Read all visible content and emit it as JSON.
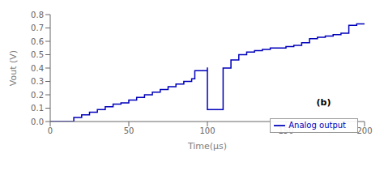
{
  "chart_data": {
    "type": "line",
    "xlabel": "Time(μs)",
    "ylabel": "Vout (V)",
    "annotations": [
      "(b)"
    ],
    "x": [
      0,
      10,
      15,
      20,
      25,
      30,
      35,
      40,
      45,
      50,
      55,
      60,
      65,
      70,
      75,
      80,
      85,
      90,
      92,
      100,
      100.01,
      105,
      110,
      115,
      120,
      125,
      130,
      135,
      140,
      145,
      150,
      155,
      160,
      165,
      170,
      175,
      180,
      185,
      190,
      195,
      200
    ],
    "series": [
      {
        "name": "Analog output",
        "color": "#0000BB",
        "line_style": "step",
        "values": [
          0.0,
          0.0,
          0.03,
          0.05,
          0.07,
          0.09,
          0.11,
          0.13,
          0.14,
          0.16,
          0.18,
          0.2,
          0.22,
          0.24,
          0.26,
          0.28,
          0.3,
          0.32,
          0.38,
          0.4,
          0.09,
          0.09,
          0.4,
          0.46,
          0.5,
          0.52,
          0.53,
          0.54,
          0.55,
          0.55,
          0.56,
          0.57,
          0.59,
          0.62,
          0.63,
          0.64,
          0.65,
          0.66,
          0.72,
          0.73,
          0.73
        ]
      }
    ],
    "xlim": [
      0,
      200
    ],
    "xticks": [
      0,
      50,
      100,
      150,
      200
    ],
    "ylim": [
      0,
      0.8
    ],
    "yticks": [
      {
        "value": 0,
        "label": "0.0"
      },
      0.1,
      0.2,
      0.3,
      0.4,
      0.5,
      0.6,
      0.7,
      0.8
    ],
    "grid": false,
    "legend": "lower right"
  }
}
